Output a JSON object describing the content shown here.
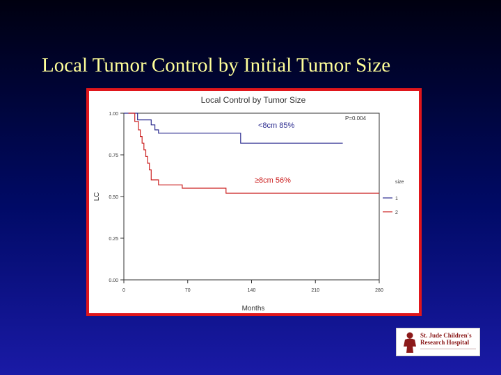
{
  "slide": {
    "title": "Local Tumor Control by Initial Tumor Size"
  },
  "logo": {
    "lines": [
      "St. Jude Children's",
      "Research Hospital"
    ],
    "color": "#8b1a1a"
  },
  "chart_data": {
    "type": "line",
    "title": "Local Control by Tumor Size",
    "xlabel": "Months",
    "ylabel": "LC",
    "xlim": [
      0,
      280
    ],
    "ylim": [
      0,
      1
    ],
    "xticks": [
      "0",
      "70",
      "140",
      "210",
      "280"
    ],
    "yticks": [
      "0.00",
      "0.25",
      "0.50",
      "0.75",
      "1.00"
    ],
    "p_value": "P=0.004",
    "grid": false,
    "legend": {
      "title": "size",
      "placement": "right",
      "entries": [
        "1",
        "2"
      ]
    },
    "series": [
      {
        "name": "1",
        "label": "<8cm 85%",
        "color": "#2b2b8f",
        "points": [
          [
            0,
            1.0
          ],
          [
            15,
            1.0
          ],
          [
            15,
            0.96
          ],
          [
            30,
            0.96
          ],
          [
            30,
            0.93
          ],
          [
            34,
            0.93
          ],
          [
            34,
            0.9
          ],
          [
            38,
            0.9
          ],
          [
            38,
            0.88
          ],
          [
            128,
            0.88
          ],
          [
            128,
            0.82
          ],
          [
            240,
            0.82
          ]
        ]
      },
      {
        "name": "2",
        "label": "≥8cm 56%",
        "color": "#cc2222",
        "points": [
          [
            5,
            1.0
          ],
          [
            12,
            1.0
          ],
          [
            12,
            0.95
          ],
          [
            16,
            0.95
          ],
          [
            16,
            0.9
          ],
          [
            18,
            0.9
          ],
          [
            18,
            0.86
          ],
          [
            20,
            0.86
          ],
          [
            20,
            0.82
          ],
          [
            22,
            0.82
          ],
          [
            22,
            0.78
          ],
          [
            24,
            0.78
          ],
          [
            24,
            0.74
          ],
          [
            26,
            0.74
          ],
          [
            26,
            0.7
          ],
          [
            28,
            0.7
          ],
          [
            28,
            0.66
          ],
          [
            30,
            0.66
          ],
          [
            30,
            0.6
          ],
          [
            38,
            0.6
          ],
          [
            38,
            0.57
          ],
          [
            64,
            0.57
          ],
          [
            64,
            0.55
          ],
          [
            112,
            0.55
          ],
          [
            112,
            0.52
          ],
          [
            280,
            0.52
          ]
        ]
      }
    ]
  }
}
